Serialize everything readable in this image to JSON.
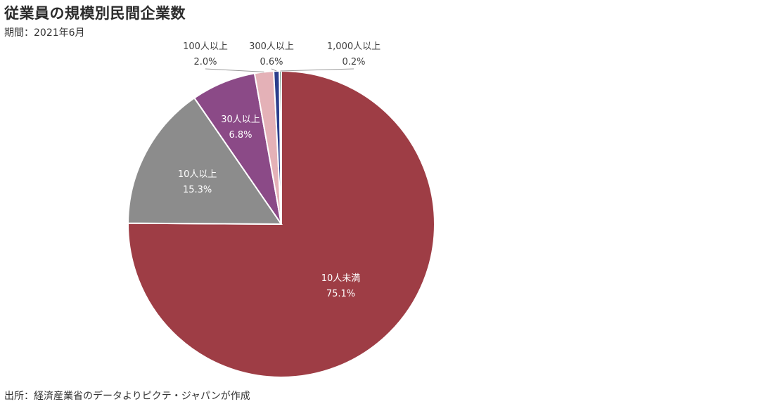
{
  "title": "従業員の規模別民間企業数",
  "subtitle": "期間：2021年6月",
  "source": "出所：経済産業省のデータよりピクテ・ジャパンが作成",
  "chart_data": {
    "type": "pie",
    "start_angle_deg": 0,
    "direction": "clockwise",
    "slices": [
      {
        "label": "10人未満",
        "value": 75.1,
        "value_label": "75.1%",
        "color": "#9e3d45",
        "label_color": "#ffffff",
        "label_placement": "inside"
      },
      {
        "label": "10人以上",
        "value": 15.3,
        "value_label": "15.3%",
        "color": "#8c8c8c",
        "label_color": "#ffffff",
        "label_placement": "inside"
      },
      {
        "label": "30人以上",
        "value": 6.8,
        "value_label": "6.8%",
        "color": "#8b4a87",
        "label_color": "#ffffff",
        "label_placement": "inside"
      },
      {
        "label": "100人以上",
        "value": 2.0,
        "value_label": "2.0%",
        "color": "#e4b1b7",
        "label_color": "#404040",
        "label_placement": "outside"
      },
      {
        "label": "300人以上",
        "value": 0.6,
        "value_label": "0.6%",
        "color": "#2b3e8c",
        "label_color": "#404040",
        "label_placement": "outside"
      },
      {
        "label": "1,000人以上",
        "value": 0.2,
        "value_label": "0.2%",
        "color": "#2f6b50",
        "label_color": "#404040",
        "label_placement": "outside"
      }
    ]
  }
}
